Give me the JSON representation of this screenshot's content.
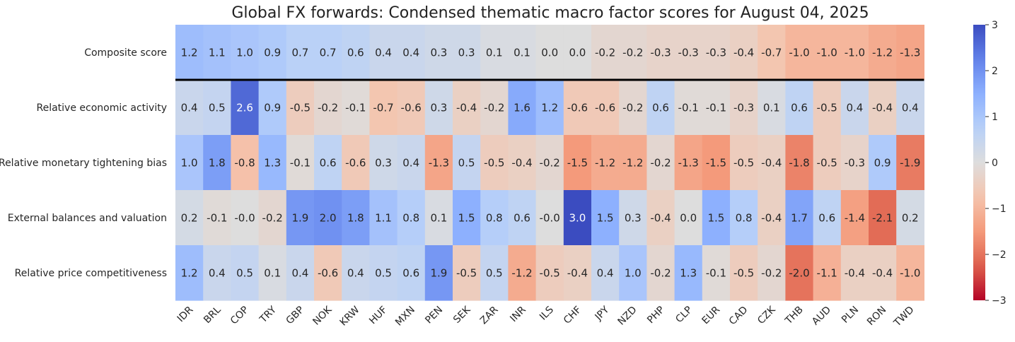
{
  "chart_data": {
    "type": "heatmap",
    "title": "Global FX forwards: Condensed thematic macro factor scores for August 04, 2025",
    "x": [
      "IDR",
      "BRL",
      "COP",
      "TRY",
      "GBP",
      "NOK",
      "KRW",
      "HUF",
      "MXN",
      "PEN",
      "SEK",
      "ZAR",
      "INR",
      "ILS",
      "CHF",
      "JPY",
      "NZD",
      "PHP",
      "CLP",
      "EUR",
      "CAD",
      "CZK",
      "THB",
      "AUD",
      "PLN",
      "RON",
      "TWD"
    ],
    "y": [
      "Composite score",
      "Relative economic activity",
      "Relative monetary tightening bias",
      "External balances and valuation",
      "Relative price competitiveness"
    ],
    "values": [
      [
        1.2,
        1.1,
        1.0,
        0.9,
        0.7,
        0.7,
        0.6,
        0.4,
        0.4,
        0.3,
        0.3,
        0.1,
        0.1,
        0.0,
        0.0,
        -0.2,
        -0.2,
        -0.3,
        -0.3,
        -0.3,
        -0.4,
        -0.7,
        -1.0,
        -1.0,
        -1.0,
        -1.2,
        -1.3
      ],
      [
        0.4,
        0.5,
        2.6,
        0.9,
        -0.5,
        -0.2,
        -0.1,
        -0.7,
        -0.6,
        0.3,
        -0.4,
        -0.2,
        1.6,
        1.2,
        -0.6,
        -0.6,
        -0.2,
        0.6,
        -0.1,
        -0.1,
        -0.3,
        0.1,
        0.6,
        -0.5,
        0.4,
        -0.4,
        0.4
      ],
      [
        1.0,
        1.8,
        -0.8,
        1.3,
        -0.1,
        0.6,
        -0.6,
        0.3,
        0.4,
        -1.3,
        0.5,
        -0.5,
        -0.4,
        -0.2,
        -1.5,
        -1.2,
        -1.2,
        -0.2,
        -1.3,
        -1.5,
        -0.5,
        -0.4,
        -1.8,
        -0.5,
        -0.3,
        0.9,
        -1.9
      ],
      [
        0.2,
        -0.1,
        -0.0,
        -0.2,
        1.9,
        2.0,
        1.8,
        1.1,
        0.8,
        0.1,
        1.5,
        0.8,
        0.6,
        -0.0,
        3.0,
        1.5,
        0.3,
        -0.4,
        0.0,
        1.5,
        0.8,
        -0.4,
        1.7,
        0.6,
        -1.4,
        -2.1,
        0.2
      ],
      [
        1.2,
        0.4,
        0.5,
        0.1,
        0.4,
        -0.6,
        0.4,
        0.5,
        0.6,
        1.9,
        -0.5,
        0.5,
        -1.2,
        -0.5,
        -0.4,
        0.4,
        1.0,
        -0.2,
        1.3,
        -0.1,
        -0.5,
        -0.2,
        -2.0,
        -1.1,
        -0.4,
        -0.4,
        -1.0
      ]
    ],
    "value_labels": [
      [
        "1.2",
        "1.1",
        "1.0",
        "0.9",
        "0.7",
        "0.7",
        "0.6",
        "0.4",
        "0.4",
        "0.3",
        "0.3",
        "0.1",
        "0.1",
        "0.0",
        "0.0",
        "-0.2",
        "-0.2",
        "-0.3",
        "-0.3",
        "-0.3",
        "-0.4",
        "-0.7",
        "-1.0",
        "-1.0",
        "-1.0",
        "-1.2",
        "-1.3"
      ],
      [
        "0.4",
        "0.5",
        "2.6",
        "0.9",
        "-0.5",
        "-0.2",
        "-0.1",
        "-0.7",
        "-0.6",
        "0.3",
        "-0.4",
        "-0.2",
        "1.6",
        "1.2",
        "-0.6",
        "-0.6",
        "-0.2",
        "0.6",
        "-0.1",
        "-0.1",
        "-0.3",
        "0.1",
        "0.6",
        "-0.5",
        "0.4",
        "-0.4",
        "0.4"
      ],
      [
        "1.0",
        "1.8",
        "-0.8",
        "1.3",
        "-0.1",
        "0.6",
        "-0.6",
        "0.3",
        "0.4",
        "-1.3",
        "0.5",
        "-0.5",
        "-0.4",
        "-0.2",
        "-1.5",
        "-1.2",
        "-1.2",
        "-0.2",
        "-1.3",
        "-1.5",
        "-0.5",
        "-0.4",
        "-1.8",
        "-0.5",
        "-0.3",
        "0.9",
        "-1.9"
      ],
      [
        "0.2",
        "-0.1",
        "-0.0",
        "-0.2",
        "1.9",
        "2.0",
        "1.8",
        "1.1",
        "0.8",
        "0.1",
        "1.5",
        "0.8",
        "0.6",
        "-0.0",
        "3.0",
        "1.5",
        "0.3",
        "-0.4",
        "0.0",
        "1.5",
        "0.8",
        "-0.4",
        "1.7",
        "0.6",
        "-1.4",
        "-2.1",
        "0.2"
      ],
      [
        "1.2",
        "0.4",
        "0.5",
        "0.1",
        "0.4",
        "-0.6",
        "0.4",
        "0.5",
        "0.6",
        "1.9",
        "-0.5",
        "0.5",
        "-1.2",
        "-0.5",
        "-0.4",
        "0.4",
        "1.0",
        "-0.2",
        "1.3",
        "-0.1",
        "-0.5",
        "-0.2",
        "-2.0",
        "-1.1",
        "-0.4",
        "-0.4",
        "-1.0"
      ]
    ],
    "vmin": -3,
    "vmax": 3,
    "colormap": "coolwarm_r",
    "colorbar_ticks": [
      3,
      2,
      1,
      0,
      -1,
      -2,
      -3
    ],
    "colorbar_tick_labels": [
      "3",
      "2",
      "1",
      "0",
      "−1",
      "−2",
      "−3"
    ],
    "separator_after_row": 0,
    "grid": false
  }
}
